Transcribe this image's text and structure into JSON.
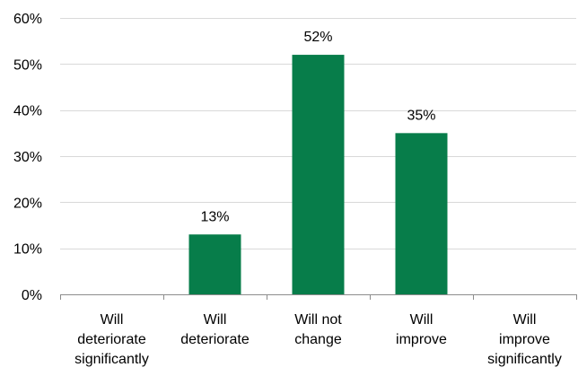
{
  "chart_data": {
    "type": "bar",
    "categories": [
      [
        "Will",
        "deteriorate",
        "significantly"
      ],
      [
        "Will",
        "deteriorate"
      ],
      [
        "Will not",
        "change"
      ],
      [
        "Will",
        "improve"
      ],
      [
        "Will",
        "improve",
        "significantly"
      ]
    ],
    "values": [
      0,
      13,
      52,
      35,
      0
    ],
    "data_labels": [
      "",
      "13%",
      "52%",
      "35%",
      ""
    ],
    "ylim": [
      0,
      60
    ],
    "yticks": [
      0,
      10,
      20,
      30,
      40,
      50,
      60
    ],
    "ytick_labels": [
      "0%",
      "10%",
      "20%",
      "30%",
      "40%",
      "50%",
      "60%"
    ],
    "grid": true,
    "legend": "none",
    "colors": {
      "bar": "#077D4A",
      "grid": "#D9D9D9",
      "axis": "#8C8C8C"
    }
  }
}
